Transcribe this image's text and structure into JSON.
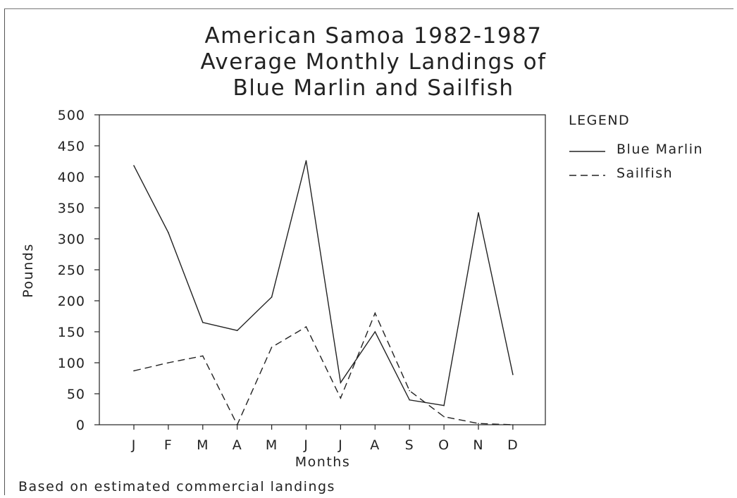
{
  "chart_data": {
    "type": "line",
    "title_lines": [
      "American Samoa 1982-1987",
      "Average Monthly Landings of",
      "Blue Marlin and Sailfish"
    ],
    "xlabel": "Months",
    "ylabel": "Pounds",
    "ylim": [
      0,
      500
    ],
    "yticks": [
      "0",
      "50",
      "100",
      "150",
      "200",
      "250",
      "300",
      "350",
      "400",
      "450",
      "500"
    ],
    "categories": [
      "J",
      "F",
      "M",
      "A",
      "M",
      "J",
      "J",
      "A",
      "S",
      "O",
      "N",
      "D"
    ],
    "legend_title": "LEGEND",
    "legend_position": "right",
    "grid": false,
    "series": [
      {
        "name": "Blue Marlin",
        "style": "solid",
        "values": [
          418,
          310,
          165,
          152,
          206,
          426,
          68,
          150,
          40,
          31,
          342,
          81
        ]
      },
      {
        "name": "Sailfish",
        "style": "dashed",
        "values": [
          87,
          100,
          111,
          0,
          125,
          158,
          43,
          180,
          55,
          13,
          2,
          0
        ]
      }
    ],
    "footnote": "Based on estimated commercial landings"
  }
}
